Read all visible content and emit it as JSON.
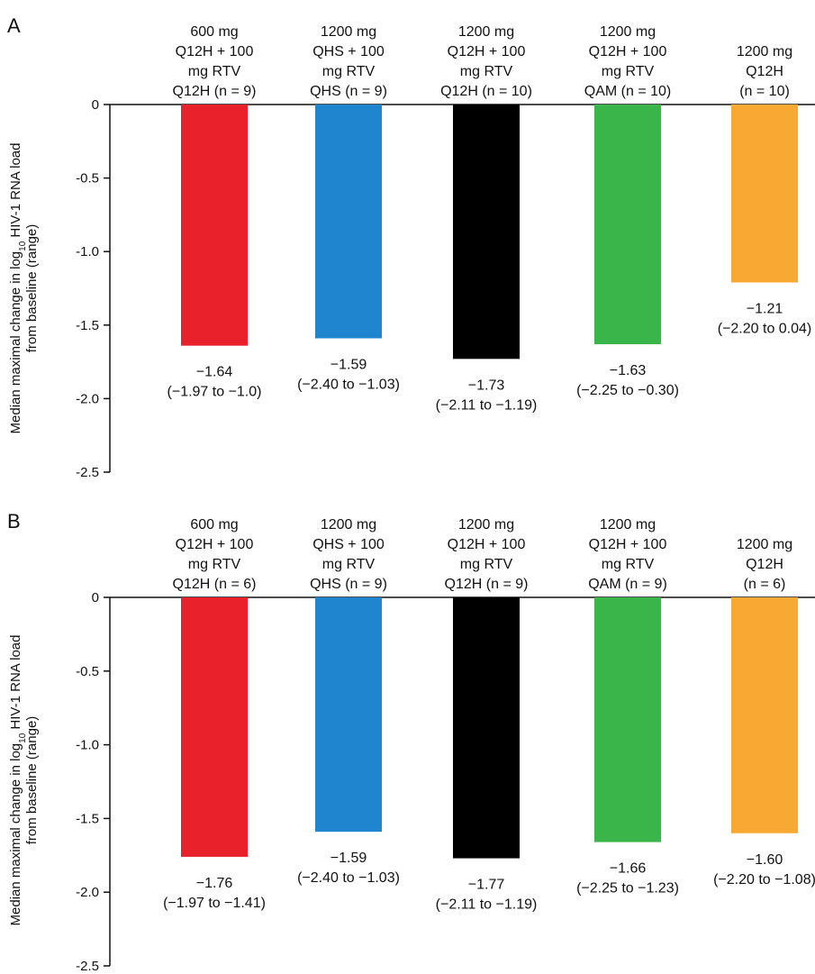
{
  "chart_data": [
    {
      "type": "bar",
      "panel": "A",
      "ylabel_pre": "Median maximal change in log",
      "ylabel_sub": "10",
      "ylabel_post": " HIV-1 RNA load",
      "ylabel_line2": "from baseline (range)",
      "ylim": [
        -2.5,
        0
      ],
      "yticks": [
        "0",
        "-0.5",
        "-1.0",
        "-1.5",
        "-2.0",
        "-2.5"
      ],
      "tick_values": [
        0,
        -0.5,
        -1.0,
        -1.5,
        -2.0,
        -2.5
      ],
      "colors": [
        "#e8212b",
        "#1f85cf",
        "#000000",
        "#39b54a",
        "#f7a934"
      ],
      "categories": [
        [
          "600 mg",
          "Q12H + 100",
          "mg RTV",
          "Q12H (n = 9)"
        ],
        [
          "1200 mg",
          "QHS + 100",
          "mg RTV",
          "QHS (n = 9)"
        ],
        [
          "1200 mg",
          "Q12H + 100",
          "mg RTV",
          "Q12H (n = 10)"
        ],
        [
          "1200 mg",
          "Q12H + 100",
          "mg RTV",
          "QAM (n = 10)"
        ],
        [
          "1200 mg",
          "Q12H",
          "(n = 10)"
        ]
      ],
      "values": [
        -1.64,
        -1.59,
        -1.73,
        -1.63,
        -1.21
      ],
      "value_labels": [
        "−1.64",
        "−1.59",
        "−1.73",
        "−1.63",
        "−1.21"
      ],
      "range_labels": [
        "(−1.97 to −1.0)",
        "(−2.40 to −1.03)",
        "(−2.11 to −1.19)",
        "(−2.25 to −0.30)",
        "(−2.20 to 0.04)"
      ]
    },
    {
      "type": "bar",
      "panel": "B",
      "ylabel_pre": "Median maximal change in log",
      "ylabel_sub": "10",
      "ylabel_post": " HIV-1 RNA load",
      "ylabel_line2": "from baseline (range)",
      "ylim": [
        -2.5,
        0
      ],
      "yticks": [
        "0",
        "-0.5",
        "-1.0",
        "-1.5",
        "-2.0",
        "-2.5"
      ],
      "tick_values": [
        0,
        -0.5,
        -1.0,
        -1.5,
        -2.0,
        -2.5
      ],
      "colors": [
        "#e8212b",
        "#1f85cf",
        "#000000",
        "#39b54a",
        "#f7a934"
      ],
      "categories": [
        [
          "600 mg",
          "Q12H + 100",
          "mg RTV",
          "Q12H (n = 6)"
        ],
        [
          "1200 mg",
          "QHS + 100",
          "mg RTV",
          "QHS (n = 9)"
        ],
        [
          "1200 mg",
          "Q12H + 100",
          "mg RTV",
          "Q12H (n = 9)"
        ],
        [
          "1200 mg",
          "Q12H + 100",
          "mg RTV",
          "QAM (n = 9)"
        ],
        [
          "1200 mg",
          "Q12H",
          "(n = 6)"
        ]
      ],
      "values": [
        -1.76,
        -1.59,
        -1.77,
        -1.66,
        -1.6
      ],
      "value_labels": [
        "−1.76",
        "−1.59",
        "−1.77",
        "−1.66",
        "−1.60"
      ],
      "range_labels": [
        "(−1.97 to −1.41)",
        "(−2.40 to −1.03)",
        "(−2.11 to −1.19)",
        "(−2.25 to −1.23)",
        "(−2.20 to −1.08)"
      ]
    }
  ]
}
